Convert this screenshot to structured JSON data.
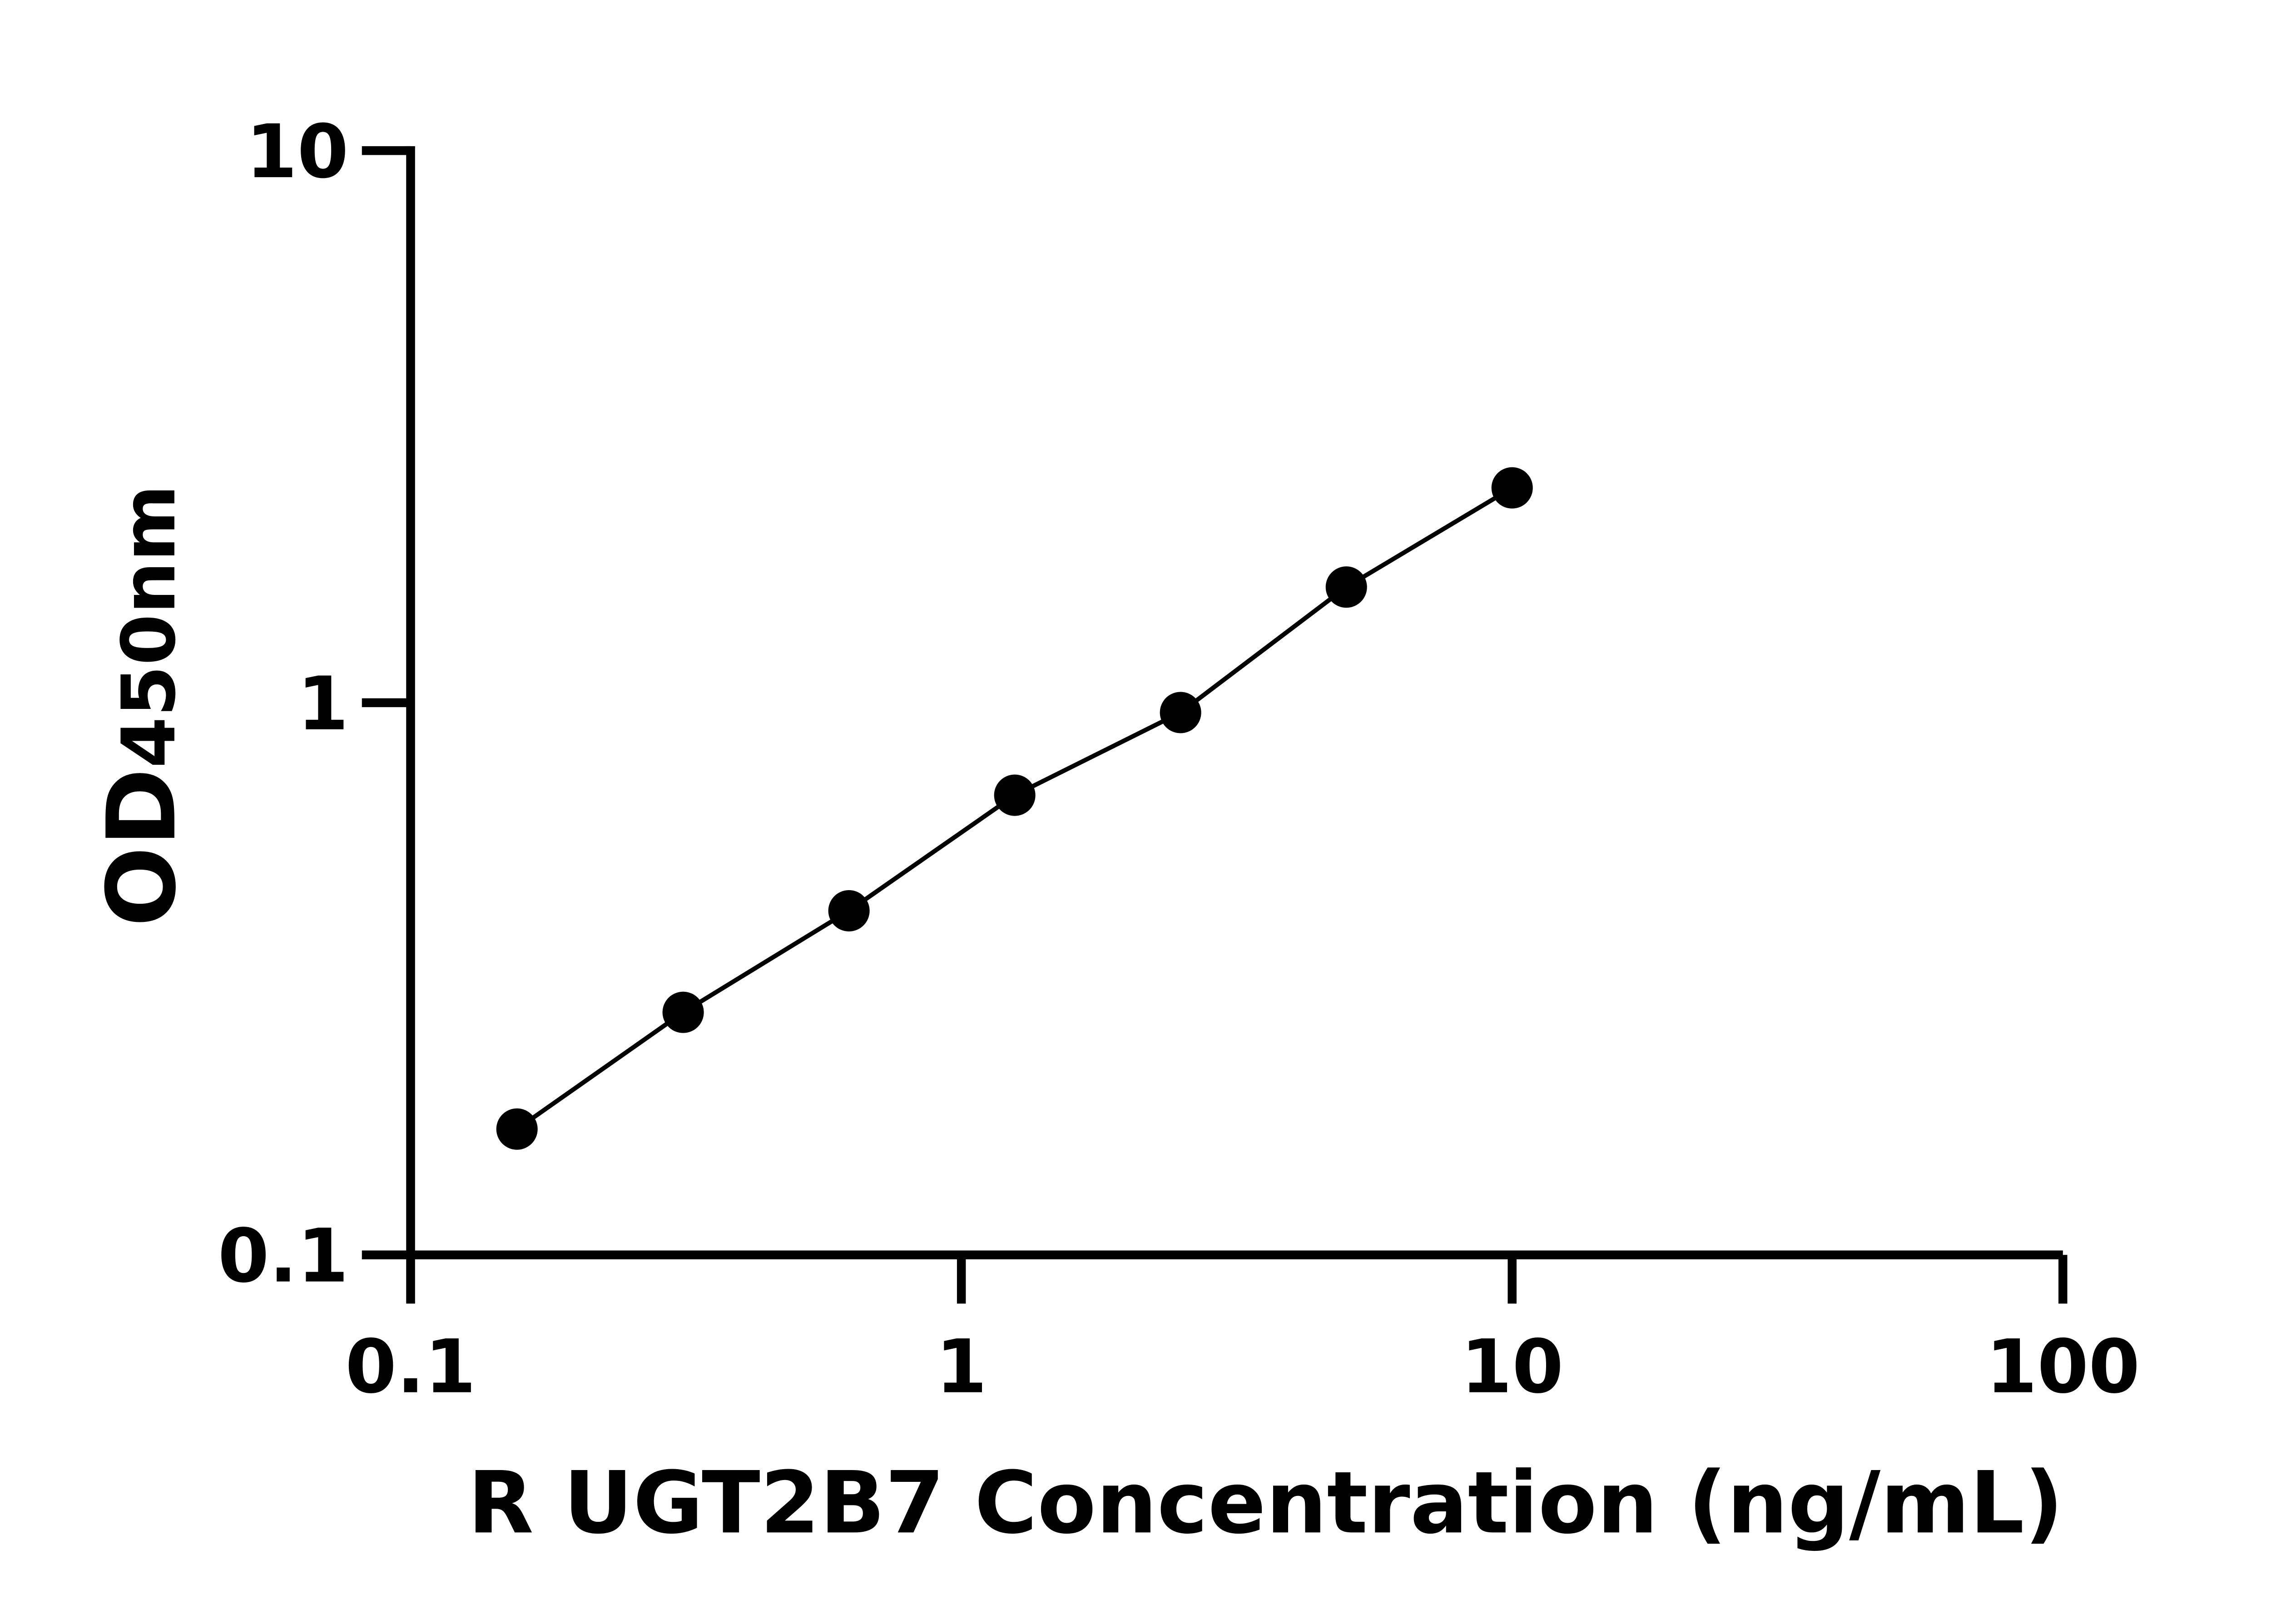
{
  "chart_data": {
    "type": "line",
    "title": "",
    "xlabel": "R UGT2B7 Concentration (ng/mL)",
    "ylabel_main": "OD",
    "ylabel_sub": "450nm",
    "x_scale": "log",
    "y_scale": "log",
    "xlim": [
      0.1,
      100
    ],
    "ylim": [
      0.1,
      10
    ],
    "x_ticks": [
      0.1,
      1,
      10,
      100
    ],
    "x_tick_labels": [
      "0.1",
      "1",
      "10",
      "100"
    ],
    "y_ticks": [
      0.1,
      1,
      10
    ],
    "y_tick_labels": [
      "0.1",
      "1",
      "10"
    ],
    "grid": false,
    "markers": "filled circle",
    "color": "#000000",
    "series": [
      {
        "x": [
          0.156,
          0.3125,
          0.625,
          1.25,
          2.5,
          5,
          10
        ],
        "y": [
          0.169,
          0.275,
          0.42,
          0.68,
          0.96,
          1.62,
          2.45
        ]
      }
    ]
  }
}
